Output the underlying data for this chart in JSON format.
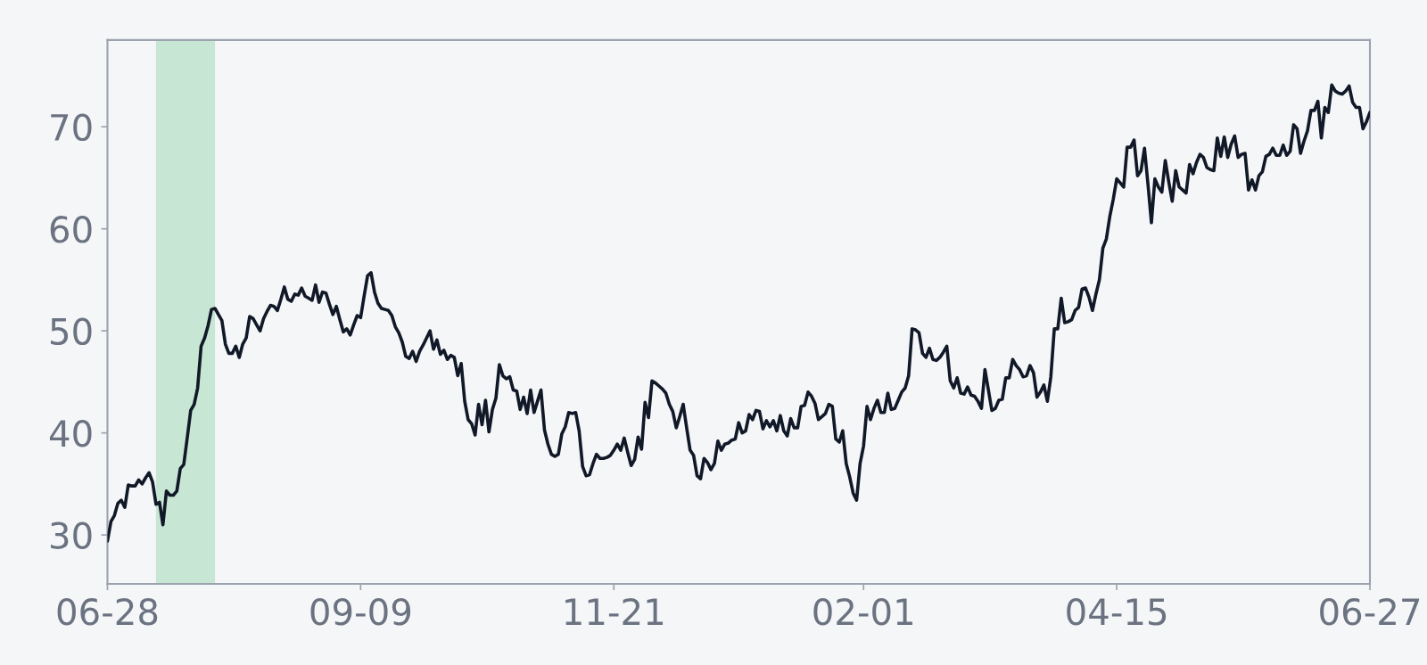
{
  "chart_data": {
    "type": "line",
    "categories": [
      "06-28",
      null,
      null,
      null,
      null,
      null,
      null,
      null,
      null,
      null,
      null,
      null,
      null,
      null,
      null,
      null,
      null,
      null,
      null,
      null,
      null,
      null,
      null,
      null,
      null,
      null,
      null,
      null,
      null,
      null,
      null,
      null,
      null,
      null,
      null,
      null,
      null,
      null,
      null,
      null,
      null,
      null,
      null,
      null,
      null,
      null,
      null,
      null,
      null,
      null,
      null,
      null,
      null,
      null,
      null,
      null,
      null,
      null,
      null,
      null,
      null,
      null,
      null,
      null,
      null,
      null,
      null,
      null,
      null,
      null,
      null,
      null,
      null,
      "09-09",
      null,
      null,
      null,
      null,
      null,
      null,
      null,
      null,
      null,
      null,
      null,
      null,
      null,
      null,
      null,
      null,
      null,
      null,
      null,
      null,
      null,
      null,
      null,
      null,
      null,
      null,
      null,
      null,
      null,
      null,
      null,
      null,
      null,
      null,
      null,
      null,
      null,
      null,
      null,
      null,
      null,
      null,
      null,
      null,
      null,
      null,
      null,
      null,
      null,
      null,
      null,
      null,
      null,
      null,
      null,
      null,
      null,
      null,
      null,
      null,
      null,
      null,
      null,
      null,
      null,
      null,
      null,
      null,
      null,
      null,
      null,
      null,
      "11-21",
      null,
      null,
      null,
      null,
      null,
      null,
      null,
      null,
      null,
      null,
      null,
      null,
      null,
      null,
      null,
      null,
      null,
      null,
      null,
      null,
      null,
      null,
      null,
      null,
      null,
      null,
      null,
      null,
      null,
      null,
      null,
      null,
      null,
      null,
      null,
      null,
      null,
      null,
      null,
      null,
      null,
      null,
      null,
      null,
      null,
      null,
      null,
      null,
      null,
      null,
      null,
      null,
      null,
      null,
      null,
      null,
      null,
      null,
      null,
      null,
      null,
      null,
      null,
      null,
      null,
      null,
      null,
      null,
      null,
      null,
      null,
      "02-01",
      null,
      null,
      null,
      null,
      null,
      null,
      null,
      null,
      null,
      null,
      null,
      null,
      null,
      null,
      null,
      null,
      null,
      null,
      null,
      null,
      null,
      null,
      null,
      null,
      null,
      null,
      null,
      null,
      null,
      null,
      null,
      null,
      null,
      null,
      null,
      null,
      null,
      null,
      null,
      null,
      null,
      null,
      null,
      null,
      null,
      null,
      null,
      null,
      null,
      null,
      null,
      null,
      null,
      null,
      null,
      null,
      null,
      null,
      null,
      null,
      null,
      null,
      null,
      null,
      null,
      null,
      null,
      null,
      null,
      null,
      null,
      null,
      "04-15",
      null,
      null,
      null,
      null,
      null,
      null,
      null,
      null,
      null,
      null,
      null,
      null,
      null,
      null,
      null,
      null,
      null,
      null,
      null,
      null,
      null,
      null,
      null,
      null,
      null,
      null,
      null,
      null,
      null,
      null,
      null,
      null,
      null,
      null,
      null,
      null,
      null,
      null,
      null,
      null,
      null,
      null,
      null,
      null,
      null,
      null,
      null,
      null,
      null,
      null,
      null,
      null,
      null,
      null,
      null,
      null,
      null,
      null,
      null,
      null,
      null,
      null,
      null,
      null,
      null,
      null,
      null,
      null,
      null,
      null,
      null,
      null,
      "06-27"
    ],
    "series": [
      {
        "color": "#111827",
        "values": [
          29.4,
          31.3,
          31.9,
          33.1,
          33.4,
          32.7,
          34.9,
          34.8,
          34.8,
          35.4,
          35.0,
          35.6,
          36.1,
          35.2,
          33.0,
          33.2,
          31.0,
          34.3,
          33.9,
          33.9,
          34.3,
          36.5,
          36.9,
          39.5,
          42.2,
          42.8,
          44.4,
          48.5,
          49.3,
          50.5,
          52.1,
          52.2,
          51.6,
          51.0,
          48.7,
          47.8,
          47.8,
          48.5,
          47.4,
          48.7,
          49.3,
          51.4,
          51.2,
          50.6,
          50.0,
          51.2,
          51.9,
          52.5,
          52.4,
          52.0,
          53.1,
          54.3,
          53.1,
          52.9,
          53.6,
          53.5,
          54.2,
          53.4,
          53.2,
          53.0,
          54.5,
          52.8,
          53.8,
          53.7,
          52.6,
          51.6,
          52.4,
          51.1,
          49.9,
          50.2,
          49.6,
          50.6,
          51.5,
          51.3,
          53.4,
          55.4,
          55.7,
          53.8,
          52.7,
          52.2,
          52.1,
          52.0,
          51.5,
          50.4,
          49.8,
          48.9,
          47.5,
          47.3,
          48.0,
          47.0,
          48.0,
          48.6,
          49.3,
          50.0,
          48.2,
          49.1,
          47.7,
          48.1,
          47.2,
          47.6,
          47.4,
          45.6,
          46.8,
          43.1,
          41.3,
          40.9,
          39.8,
          42.8,
          40.8,
          43.2,
          40.1,
          42.3,
          43.4,
          46.7,
          45.6,
          45.3,
          45.5,
          44.2,
          44.1,
          42.3,
          43.5,
          41.9,
          44.2,
          42.0,
          43.1,
          44.2,
          40.3,
          38.9,
          37.9,
          37.7,
          37.9,
          39.9,
          40.6,
          42.0,
          41.9,
          42.0,
          40.2,
          36.7,
          35.8,
          35.9,
          37.0,
          37.9,
          37.5,
          37.5,
          37.6,
          37.8,
          38.3,
          38.9,
          38.3,
          39.5,
          38.1,
          36.8,
          37.4,
          39.6,
          38.4,
          43.0,
          41.5,
          45.1,
          44.9,
          44.6,
          44.3,
          43.9,
          42.8,
          42.1,
          40.5,
          41.6,
          42.8,
          40.5,
          38.3,
          37.8,
          35.8,
          35.5,
          37.5,
          37.1,
          36.4,
          37.0,
          39.2,
          38.3,
          38.9,
          39.0,
          39.3,
          39.4,
          41.0,
          40.0,
          40.2,
          41.8,
          41.3,
          42.2,
          42.1,
          40.4,
          41.2,
          40.6,
          41.2,
          40.2,
          41.7,
          40.2,
          39.7,
          41.4,
          40.5,
          40.5,
          42.6,
          42.7,
          44.0,
          43.6,
          42.9,
          41.3,
          41.6,
          41.9,
          42.8,
          42.6,
          39.4,
          39.1,
          40.2,
          37.0,
          35.7,
          34.1,
          33.4,
          37.0,
          38.7,
          42.6,
          41.3,
          42.4,
          43.2,
          42.0,
          42.0,
          43.9,
          42.3,
          42.4,
          43.2,
          44.0,
          44.4,
          45.6,
          50.2,
          50.1,
          49.8,
          47.8,
          47.4,
          48.3,
          47.2,
          47.1,
          47.4,
          47.9,
          48.5,
          45.1,
          44.4,
          45.4,
          43.9,
          43.8,
          44.5,
          43.7,
          43.6,
          43.1,
          42.4,
          46.2,
          44.2,
          42.2,
          42.4,
          43.2,
          43.3,
          45.4,
          45.4,
          47.2,
          46.6,
          46.2,
          45.5,
          45.6,
          46.6,
          45.9,
          43.5,
          44.0,
          44.7,
          43.1,
          45.5,
          50.2,
          50.2,
          53.2,
          50.8,
          50.9,
          51.1,
          52.0,
          52.3,
          54.1,
          54.2,
          53.3,
          52.0,
          53.6,
          55.0,
          58.1,
          59.0,
          61.2,
          62.9,
          64.9,
          64.5,
          64.1,
          68.0,
          68.0,
          68.7,
          65.2,
          65.7,
          67.9,
          64.4,
          60.6,
          64.9,
          64.1,
          63.6,
          66.7,
          64.6,
          62.7,
          65.7,
          64.1,
          63.8,
          63.5,
          66.3,
          65.4,
          66.5,
          67.3,
          67.0,
          66.0,
          65.8,
          65.7,
          68.9,
          67.1,
          69.0,
          67.0,
          68.3,
          69.1,
          67.0,
          67.3,
          67.4,
          63.8,
          64.8,
          63.8,
          65.2,
          65.6,
          67.1,
          67.3,
          67.9,
          67.2,
          67.2,
          68.2,
          67.2,
          67.6,
          70.2,
          69.8,
          67.4,
          68.6,
          69.6,
          71.6,
          71.6,
          72.5,
          68.9,
          71.9,
          71.4,
          74.1,
          73.5,
          73.3,
          73.2,
          73.5,
          74.0,
          72.4,
          71.9,
          71.9,
          69.8,
          70.5,
          71.4
        ]
      }
    ],
    "ylim": [
      25.2,
      78.5
    ],
    "yticks": [
      30,
      40,
      50,
      60,
      70
    ]
  }
}
